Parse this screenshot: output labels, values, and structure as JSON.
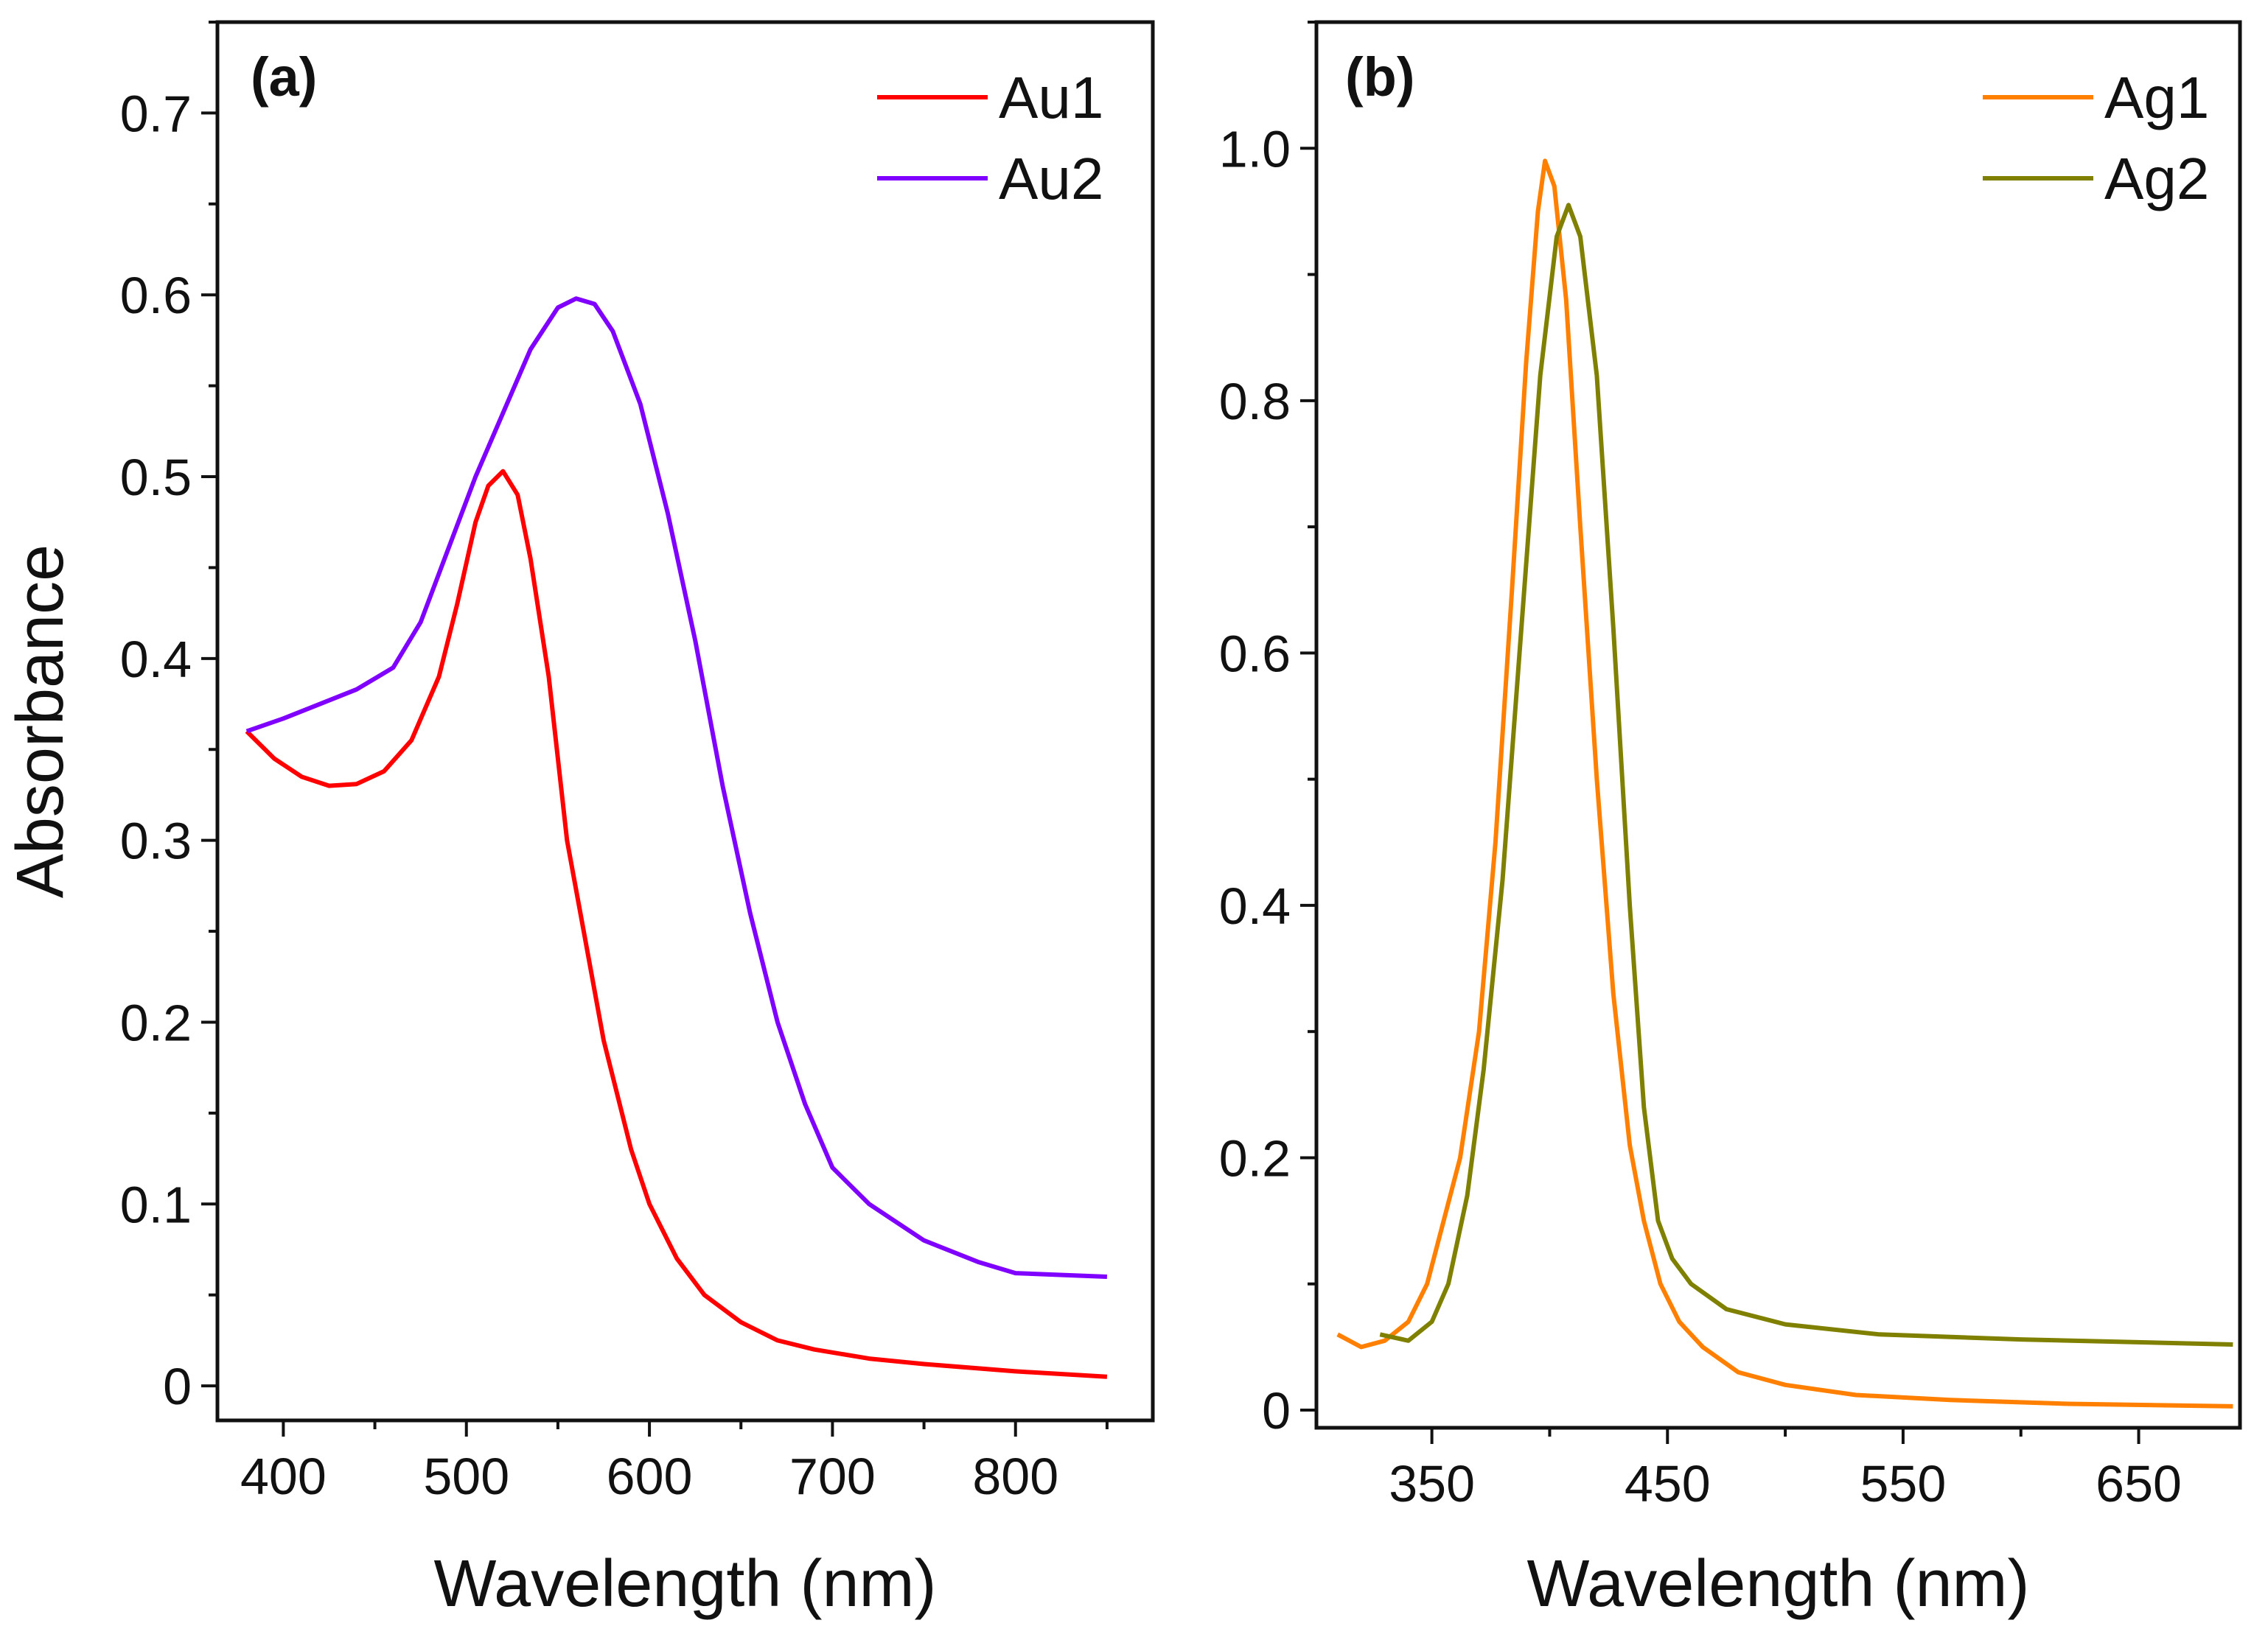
{
  "chart_data": [
    {
      "type": "line",
      "panel_label": "(a)",
      "xlabel": "Wavelength (nm)",
      "ylabel": "Absorbance",
      "xlim": [
        364,
        875
      ],
      "ylim": [
        -0.019,
        0.75
      ],
      "xticks": [
        400,
        500,
        600,
        700,
        800
      ],
      "xminor": 50,
      "yticks": [
        0,
        0.1,
        0.2,
        0.3,
        0.4,
        0.5,
        0.6,
        0.7
      ],
      "ytick_labels": [
        "0",
        "0.1",
        "0.2",
        "0.3",
        "0.4",
        "0.5",
        "0.6",
        "0.7"
      ],
      "yminor": 0.05,
      "legend_position": "top-right",
      "series": [
        {
          "name": "Au1",
          "color": "#ff0000",
          "x": [
            380,
            395,
            410,
            425,
            440,
            455,
            470,
            485,
            495,
            505,
            512,
            520,
            528,
            535,
            545,
            555,
            565,
            575,
            590,
            600,
            615,
            630,
            650,
            670,
            690,
            720,
            750,
            800,
            850
          ],
          "y": [
            0.36,
            0.345,
            0.335,
            0.33,
            0.331,
            0.338,
            0.355,
            0.39,
            0.43,
            0.475,
            0.495,
            0.503,
            0.49,
            0.455,
            0.39,
            0.3,
            0.245,
            0.19,
            0.13,
            0.1,
            0.07,
            0.05,
            0.035,
            0.025,
            0.02,
            0.015,
            0.012,
            0.008,
            0.005
          ]
        },
        {
          "name": "Au2",
          "color": "#8000ff",
          "x": [
            380,
            400,
            420,
            440,
            460,
            475,
            490,
            505,
            520,
            535,
            550,
            560,
            570,
            580,
            595,
            610,
            625,
            640,
            655,
            670,
            685,
            700,
            720,
            750,
            780,
            800,
            850
          ],
          "y": [
            0.36,
            0.367,
            0.375,
            0.383,
            0.395,
            0.42,
            0.46,
            0.5,
            0.535,
            0.57,
            0.593,
            0.598,
            0.595,
            0.58,
            0.54,
            0.48,
            0.41,
            0.33,
            0.26,
            0.2,
            0.155,
            0.12,
            0.1,
            0.08,
            0.068,
            0.062,
            0.06
          ]
        }
      ]
    },
    {
      "type": "line",
      "panel_label": "(b)",
      "xlabel": "Wavelength (nm)",
      "ylabel": "",
      "xlim": [
        301,
        693
      ],
      "ylim": [
        -0.014,
        1.1
      ],
      "xticks": [
        350,
        450,
        550,
        650
      ],
      "xminor": 50,
      "yticks": [
        0,
        0.2,
        0.4,
        0.6,
        0.8,
        1.0
      ],
      "ytick_labels": [
        "0",
        "0.2",
        "0.4",
        "0.6",
        "0.8",
        "1.0"
      ],
      "yminor": 0.1,
      "legend_position": "top-right",
      "series": [
        {
          "name": "Ag1",
          "color": "#ff8000",
          "x": [
            310,
            320,
            330,
            340,
            348,
            355,
            362,
            370,
            377,
            384,
            390,
            395,
            398,
            402,
            407,
            413,
            420,
            427,
            434,
            440,
            447,
            455,
            465,
            480,
            500,
            530,
            570,
            620,
            690
          ],
          "y": [
            0.06,
            0.05,
            0.055,
            0.07,
            0.1,
            0.15,
            0.2,
            0.3,
            0.45,
            0.65,
            0.83,
            0.95,
            0.99,
            0.97,
            0.88,
            0.7,
            0.5,
            0.33,
            0.21,
            0.15,
            0.1,
            0.07,
            0.05,
            0.03,
            0.02,
            0.012,
            0.008,
            0.005,
            0.003
          ]
        },
        {
          "name": "Ag2",
          "color": "#808000",
          "x": [
            328,
            340,
            350,
            357,
            365,
            372,
            380,
            388,
            396,
            403,
            408,
            413,
            420,
            427,
            434,
            440,
            446,
            452,
            460,
            475,
            500,
            540,
            600,
            690
          ],
          "y": [
            0.06,
            0.055,
            0.07,
            0.1,
            0.17,
            0.27,
            0.42,
            0.62,
            0.82,
            0.93,
            0.955,
            0.93,
            0.82,
            0.62,
            0.4,
            0.24,
            0.15,
            0.12,
            0.1,
            0.08,
            0.068,
            0.06,
            0.056,
            0.052
          ]
        }
      ]
    }
  ]
}
